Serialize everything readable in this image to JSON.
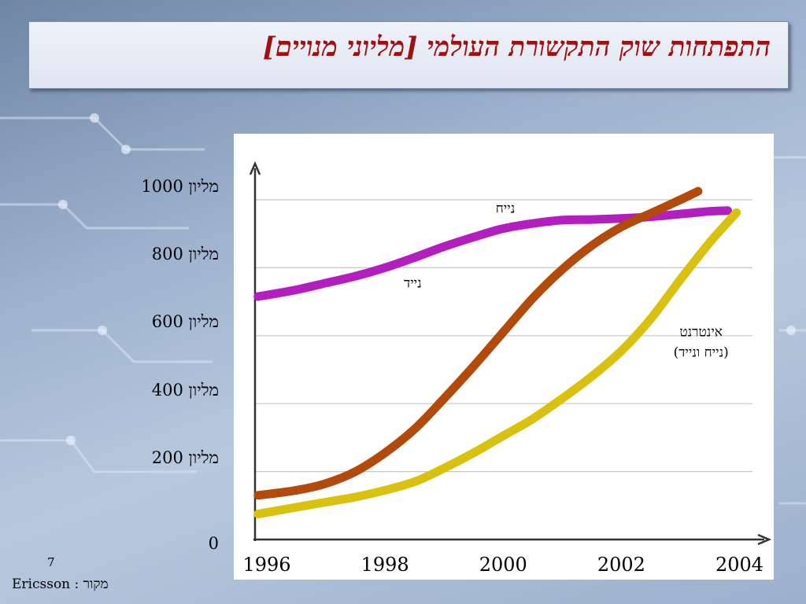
{
  "slide": {
    "title": "התפתחות שוק התקשורת העולמי [מליוני מנויים]",
    "page_number": "7",
    "source": "Ericsson : מקור"
  },
  "colors": {
    "title": "#a01010",
    "series_fixed": "#b31ebf",
    "series_mobile": "#b24a0c",
    "series_internet": "#d8c20e",
    "gridline": "#c8c8c8",
    "axis": "#333333"
  },
  "chart_data": {
    "type": "line",
    "ylim": [
      0,
      1000
    ],
    "xlim": [
      1995.8,
      2004.3
    ],
    "grid": true,
    "y_tick_values": [
      0,
      200,
      400,
      600,
      800,
      1000
    ],
    "y_tick_labels": [
      "0",
      "200 מליון",
      "400 מליון",
      "600 מליון",
      "800 מליון",
      "1000 מליון"
    ],
    "x_tick_values": [
      1996,
      1998,
      2000,
      2002,
      2004
    ],
    "x_tick_labels": [
      "1996",
      "1998",
      "2000",
      "2002",
      "2004"
    ],
    "series": [
      {
        "name": "נייח",
        "color_key": "series_fixed",
        "x": [
          1995.85,
          1996.5,
          1997.0,
          1997.5,
          1998.0,
          1998.5,
          1999.0,
          1999.5,
          2000.0,
          2000.5,
          2001.0,
          2001.5,
          2002.0,
          2002.5,
          2003.0,
          2003.5,
          2003.8
        ],
        "y": [
          715,
          735,
          755,
          775,
          800,
          830,
          862,
          890,
          915,
          930,
          940,
          942,
          945,
          950,
          958,
          966,
          968
        ]
      },
      {
        "name": "נייד",
        "color_key": "series_mobile",
        "x": [
          1995.85,
          1996.5,
          1997.0,
          1997.5,
          1998.0,
          1998.5,
          1999.0,
          1999.5,
          2000.0,
          2000.5,
          2001.0,
          2001.5,
          2002.0,
          2002.5,
          2003.0,
          2003.3
        ],
        "y": [
          130,
          145,
          165,
          200,
          255,
          325,
          415,
          510,
          610,
          710,
          795,
          865,
          920,
          960,
          1000,
          1025
        ]
      },
      {
        "name": "אינטרנט\n(נייח ונייד)",
        "color_key": "series_internet",
        "x": [
          1995.85,
          1996.5,
          1997.0,
          1997.5,
          1998.0,
          1998.5,
          1999.0,
          1999.5,
          2000.0,
          2000.5,
          2001.0,
          2001.5,
          2002.0,
          2002.5,
          2003.0,
          2003.5,
          2003.95
        ],
        "y": [
          75,
          95,
          110,
          125,
          145,
          170,
          210,
          255,
          305,
          355,
          415,
          480,
          555,
          650,
          765,
          875,
          962
        ]
      }
    ],
    "series_labels": [
      {
        "lines": [
          "נייח"
        ],
        "x": 2000.2,
        "y": 962,
        "anchor": "start"
      },
      {
        "lines": [
          "נייד"
        ],
        "x": 1998.62,
        "y": 742,
        "anchor": "start"
      },
      {
        "lines": [
          "אינטרנט",
          "(נייח ונייד)"
        ],
        "x": 2003.35,
        "y": 598,
        "anchor": "middle"
      }
    ]
  }
}
